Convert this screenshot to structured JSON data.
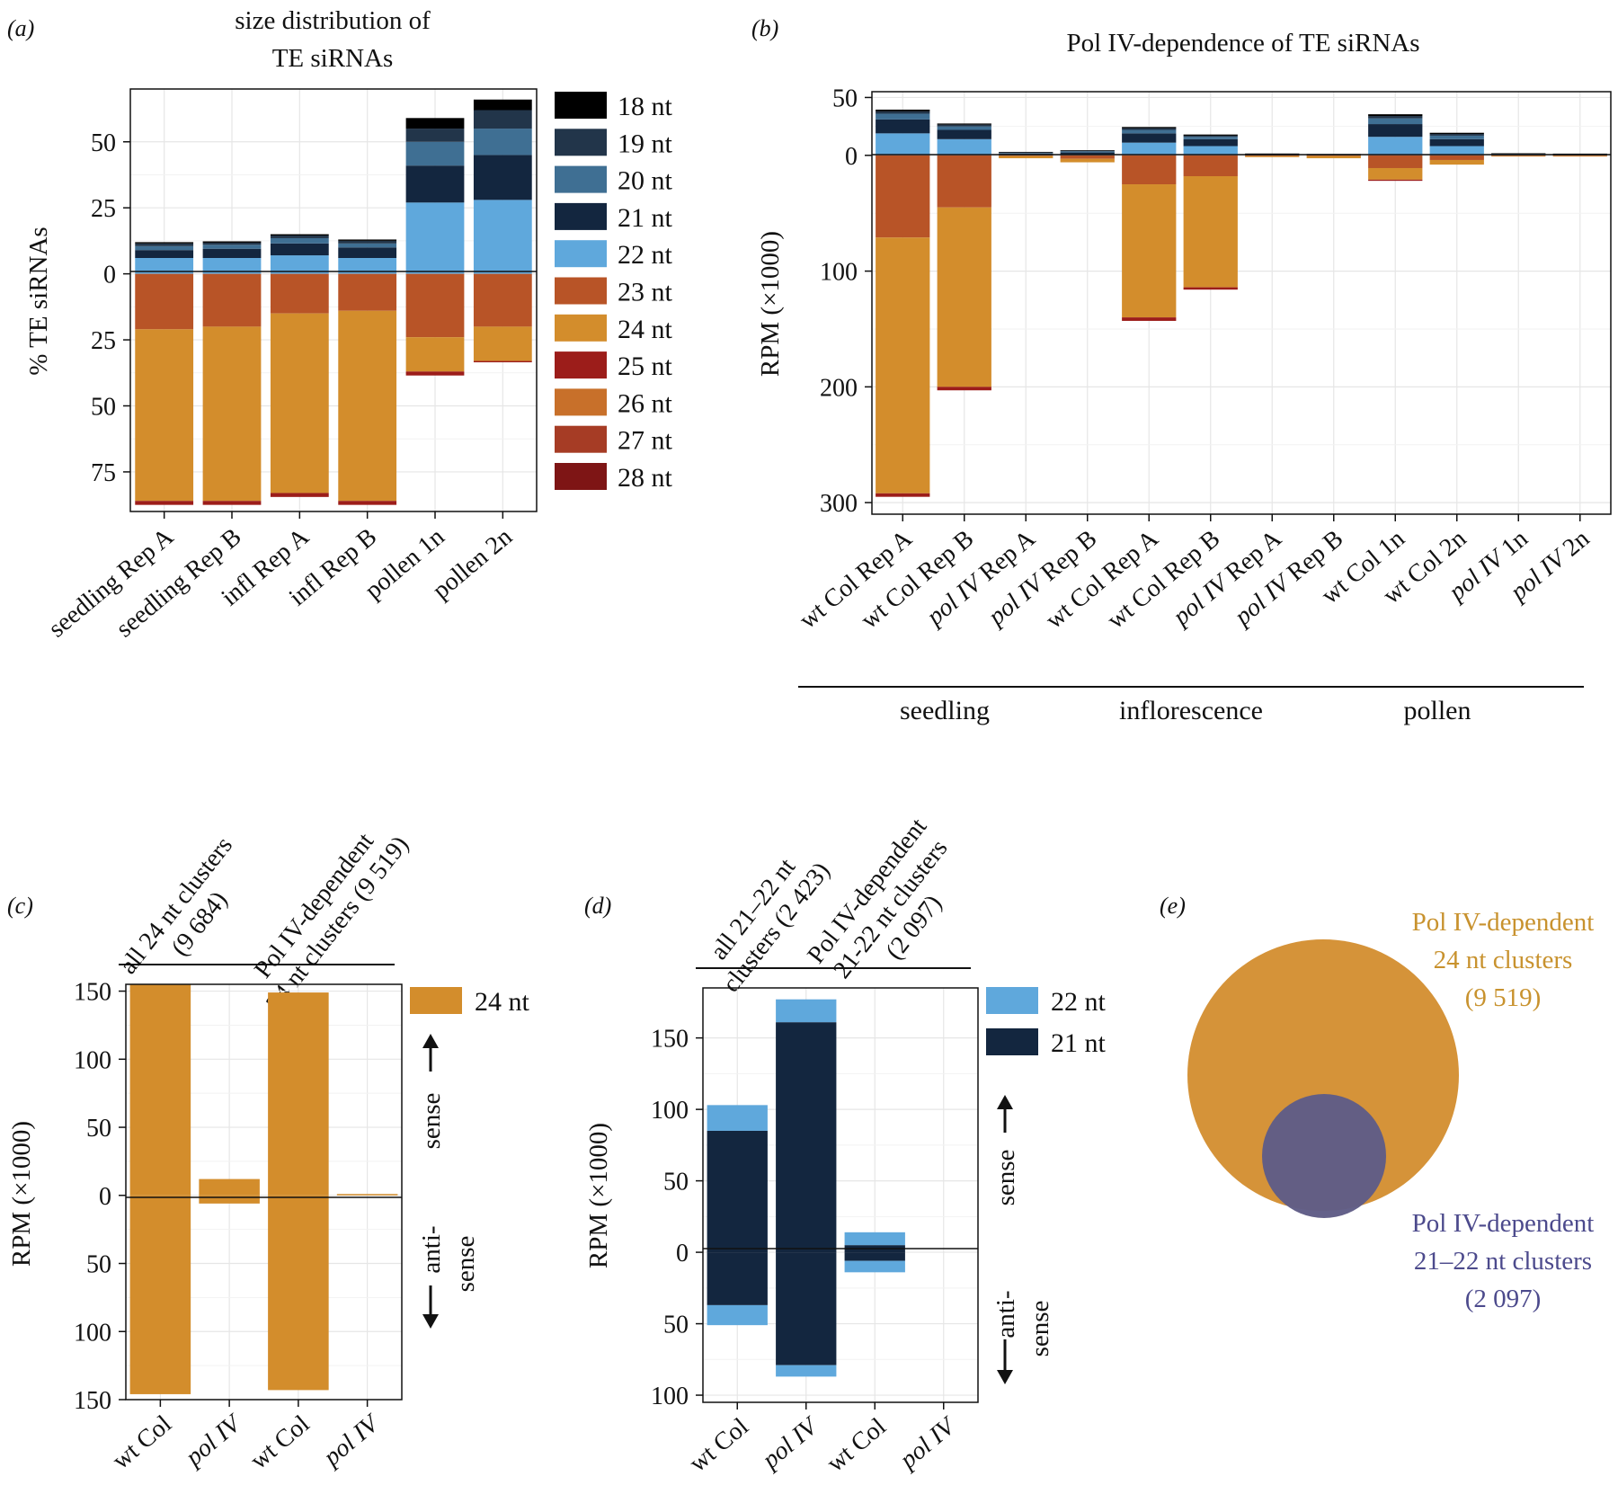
{
  "colors": {
    "18nt": "#000000",
    "19nt": "#22354a",
    "20nt": "#3f6f93",
    "21nt": "#13263f",
    "22nt": "#5fa8dc",
    "23nt": "#b85427",
    "24nt": "#d38d2c",
    "25nt": "#9c1d1a",
    "26nt": "#c8702a",
    "27nt": "#a63c25",
    "28nt": "#7e1515",
    "venn_outer": "#d59339",
    "venn_inner": "#5f5c86",
    "venn_outer_text": "#c8922e",
    "venn_inner_text": "#4c4a8c"
  },
  "chart_data": [
    {
      "panel": "(a)",
      "type": "bar",
      "stacked": true,
      "diverging": true,
      "title": "size distribution of TE siRNAs",
      "title_lines": [
        "size distribution of",
        "TE siRNAs"
      ],
      "ylabel": "% TE siRNAs",
      "ylim": [
        -90,
        70
      ],
      "yticks": [
        50,
        25,
        0,
        -25,
        -50,
        -75
      ],
      "ytick_labels": [
        "50",
        "25",
        "0",
        "25",
        "50",
        "75"
      ],
      "categories": [
        "seedling Rep A",
        "seedling Rep B",
        "infl Rep A",
        "infl Rep B",
        "pollen 1n",
        "pollen 2n"
      ],
      "legend": [
        "18 nt",
        "19 nt",
        "20 nt",
        "21 nt",
        "22 nt",
        "23 nt",
        "24 nt",
        "25 nt",
        "26 nt",
        "27 nt",
        "28 nt"
      ],
      "series_above": [
        {
          "name": "22 nt",
          "values": [
            6,
            6,
            7,
            6,
            27,
            28
          ]
        },
        {
          "name": "21 nt",
          "values": [
            3,
            3.5,
            4.5,
            4,
            14,
            17
          ]
        },
        {
          "name": "20 nt",
          "values": [
            1.5,
            1.5,
            2,
            1.5,
            9,
            10
          ]
        },
        {
          "name": "19 nt",
          "values": [
            1,
            0.8,
            1,
            1,
            5,
            7
          ]
        },
        {
          "name": "18 nt",
          "values": [
            0.5,
            0.5,
            0.5,
            0.5,
            4,
            4
          ]
        }
      ],
      "series_below": [
        {
          "name": "23 nt",
          "values": [
            21,
            20,
            15,
            14,
            24,
            20
          ]
        },
        {
          "name": "24 nt",
          "values": [
            65,
            66,
            68,
            72,
            13,
            13
          ]
        },
        {
          "name": "25 nt",
          "values": [
            1.5,
            1.5,
            1.5,
            1.5,
            1.5,
            0.5
          ]
        }
      ]
    },
    {
      "panel": "(b)",
      "type": "bar",
      "stacked": true,
      "diverging": true,
      "title": "Pol IV-dependence of TE siRNAs",
      "ylabel": "RPM (×1000)",
      "ylim": [
        -310,
        55
      ],
      "yticks": [
        50,
        0,
        -100,
        -200,
        -300
      ],
      "ytick_labels": [
        "50",
        "0",
        "100",
        "200",
        "300"
      ],
      "categories": [
        "wt Col Rep A",
        "wt Col Rep B",
        "pol IV Rep A",
        "pol IV Rep B",
        "wt Col Rep A",
        "wt Col Rep B",
        "pol IV Rep A",
        "pol IV Rep B",
        "wt Col 1n",
        "wt Col 2n",
        "pol IV 1n",
        "pol IV 2n"
      ],
      "category_italic_prefix": [
        false,
        false,
        true,
        true,
        false,
        false,
        true,
        true,
        false,
        false,
        true,
        true
      ],
      "category_prefix": [
        "wt Col",
        "wt Col",
        "pol IV",
        "pol IV",
        "wt Col",
        "wt Col",
        "pol IV",
        "pol IV",
        "wt Col",
        "wt Col",
        "pol IV",
        "pol IV"
      ],
      "category_suffix": [
        " Rep A",
        " Rep B",
        " Rep A",
        " Rep B",
        " Rep A",
        " Rep B",
        " Rep A",
        " Rep B",
        " 1n",
        " 2n",
        " 1n",
        " 2n"
      ],
      "groups": [
        {
          "label": "seedling",
          "from": 0,
          "to": 3
        },
        {
          "label": "inflorescence",
          "from": 4,
          "to": 7
        },
        {
          "label": "pollen",
          "from": 8,
          "to": 11
        }
      ],
      "series_above": [
        {
          "name": "22 nt",
          "values": [
            19,
            14,
            0.5,
            1,
            11,
            8,
            0,
            0,
            16,
            8,
            0.3,
            0.3
          ]
        },
        {
          "name": "21 nt",
          "values": [
            12,
            8,
            1,
            1.5,
            8,
            6,
            0.8,
            0.5,
            11,
            6,
            0.8,
            0.5
          ]
        },
        {
          "name": "20 nt",
          "values": [
            5,
            3,
            0.5,
            1,
            3,
            2,
            0.4,
            0.3,
            5,
            3,
            0.3,
            0.3
          ]
        },
        {
          "name": "19 nt",
          "values": [
            2,
            1.5,
            0.5,
            0.5,
            1.5,
            1,
            0.2,
            0.2,
            2,
            1.5,
            0.2,
            0.2
          ]
        },
        {
          "name": "18 nt",
          "values": [
            1.5,
            1,
            0.5,
            0.5,
            1,
            1,
            0.2,
            0.2,
            1.5,
            1,
            0.2,
            0.2
          ]
        }
      ],
      "series_below": [
        {
          "name": "23 nt",
          "values": [
            71,
            45,
            0.5,
            3,
            25,
            18,
            0.5,
            0.5,
            11,
            4,
            0.5,
            0.5
          ]
        },
        {
          "name": "24 nt",
          "values": [
            221,
            155,
            2,
            3,
            115,
            96,
            1,
            2,
            10,
            4,
            0.5,
            0.5
          ]
        },
        {
          "name": "25 nt",
          "values": [
            3,
            3,
            0,
            0,
            3,
            2,
            0,
            0,
            1,
            0,
            0,
            0
          ]
        }
      ]
    },
    {
      "panel": "(c)",
      "type": "bar",
      "stacked": true,
      "diverging": true,
      "ylabel": "RPM (×1000)",
      "ylim": [
        -150,
        155
      ],
      "yticks": [
        150,
        100,
        50,
        0,
        -50,
        -100,
        -150
      ],
      "ytick_labels": [
        "150",
        "100",
        "50",
        "0",
        "50",
        "100",
        "150"
      ],
      "categories": [
        "wt Col",
        "pol IV",
        "wt Col",
        "pol IV"
      ],
      "category_italic": [
        false,
        true,
        false,
        true
      ],
      "groups": [
        {
          "lines": [
            "all 24 nt clusters",
            "(9 684)"
          ],
          "from": 0,
          "to": 1
        },
        {
          "lines": [
            "Pol IV-dependent",
            "24 nt clusters (9 519)"
          ],
          "from": 2,
          "to": 3
        }
      ],
      "legend": [
        "24 nt"
      ],
      "sense_label": "sense",
      "antisense_label": "anti- sense",
      "antisense_lines": [
        "anti-",
        "sense"
      ],
      "series_above": [
        {
          "name": "24 nt",
          "values": [
            155,
            12,
            149,
            1
          ]
        }
      ],
      "series_below": [
        {
          "name": "24 nt",
          "values": [
            146,
            6,
            143,
            0
          ]
        }
      ]
    },
    {
      "panel": "(d)",
      "type": "bar",
      "stacked": true,
      "diverging": true,
      "ylabel": "RPM (×1000)",
      "ylim": [
        -105,
        185
      ],
      "yticks": [
        150,
        100,
        50,
        0,
        -50,
        -100
      ],
      "ytick_labels": [
        "150",
        "100",
        "50",
        "0",
        "50",
        "100"
      ],
      "categories": [
        "wt Col",
        "pol IV",
        "wt Col",
        "pol IV"
      ],
      "category_italic": [
        false,
        true,
        false,
        true
      ],
      "groups": [
        {
          "lines": [
            "all 21–22 nt",
            "clusters (2 423)"
          ],
          "from": 0,
          "to": 1
        },
        {
          "lines": [
            "Pol IV-dependent",
            "21-22 nt clusters",
            "(2 097)"
          ],
          "from": 2,
          "to": 3
        }
      ],
      "legend": [
        "22 nt",
        "21 nt"
      ],
      "sense_label": "sense",
      "antisense_label": "anti- sense",
      "antisense_lines": [
        "anti-",
        "sense"
      ],
      "series_above": [
        {
          "name": "21 nt",
          "values": [
            85,
            161,
            5,
            0
          ]
        },
        {
          "name": "22 nt",
          "values": [
            18,
            16,
            9,
            0
          ]
        }
      ],
      "series_below": [
        {
          "name": "21 nt",
          "values": [
            37,
            79,
            6,
            0
          ]
        },
        {
          "name": "22 nt",
          "values": [
            14,
            8,
            8,
            0
          ]
        }
      ]
    },
    {
      "panel": "(e)",
      "type": "venn",
      "sets": [
        {
          "label": "Pol IV-dependent 24 nt clusters (9 519)",
          "lines": [
            "Pol IV-dependent",
            "24 nt clusters",
            "(9 519)"
          ],
          "size": 9519
        },
        {
          "label": "Pol IV-dependent 21–22 nt clusters (2 097)",
          "lines": [
            "Pol IV-dependent",
            "21–22 nt clusters",
            "(2 097)"
          ],
          "size": 2097
        }
      ]
    }
  ]
}
